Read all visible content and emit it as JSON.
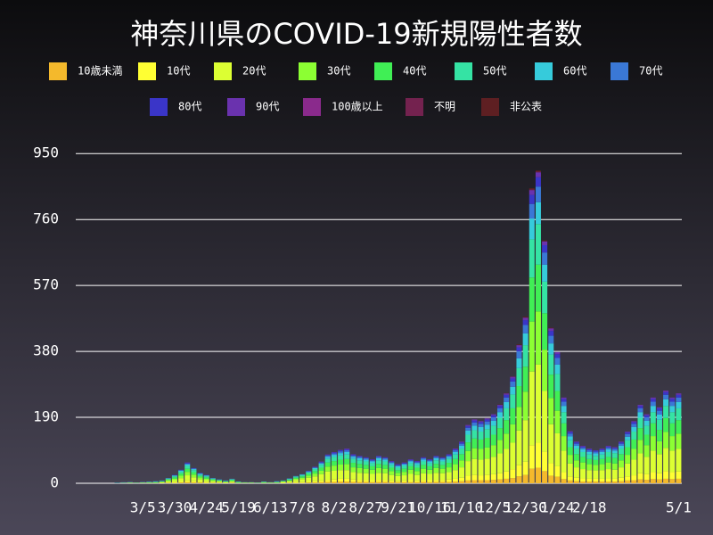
{
  "chart_data": {
    "type": "stacked_bar",
    "title": "神奈川県のCOVID-19新規陽性者数",
    "categories": [
      null,
      null,
      null,
      null,
      null,
      null,
      null,
      null,
      null,
      null,
      "3/5",
      null,
      null,
      null,
      null,
      "3/30",
      null,
      null,
      null,
      null,
      "4/24",
      null,
      null,
      null,
      null,
      "5/19",
      null,
      null,
      null,
      null,
      "6/13",
      null,
      null,
      null,
      null,
      "7/8",
      null,
      null,
      null,
      null,
      "8/2",
      null,
      null,
      null,
      null,
      "8/27",
      null,
      null,
      null,
      null,
      "9/21",
      null,
      null,
      null,
      null,
      "10/16",
      null,
      null,
      null,
      null,
      "11/10",
      null,
      null,
      null,
      null,
      "12/5",
      null,
      null,
      null,
      null,
      "12/30",
      null,
      null,
      null,
      null,
      "1/24",
      null,
      null,
      null,
      null,
      "2/18",
      null,
      null,
      null,
      null,
      null,
      null,
      null,
      null,
      null,
      null,
      null,
      null,
      null,
      "5/1"
    ],
    "ylim": [
      0,
      1020
    ],
    "yticks": [
      0,
      190,
      380,
      570,
      760,
      950
    ],
    "grid": true,
    "series": [
      {
        "name": "10歳未満",
        "color": "#f4b92c",
        "values": [
          0,
          0,
          0,
          0,
          0,
          0,
          0,
          0,
          0,
          0,
          0,
          0,
          0,
          0,
          1,
          1,
          2,
          3,
          2,
          2,
          1,
          1,
          1,
          0,
          1,
          0,
          0,
          0,
          0,
          0,
          0,
          0,
          0,
          1,
          1,
          1,
          2,
          2,
          3,
          4,
          4,
          5,
          5,
          4,
          4,
          4,
          3,
          4,
          4,
          3,
          3,
          3,
          3,
          3,
          4,
          3,
          4,
          4,
          4,
          5,
          6,
          8,
          9,
          9,
          9,
          10,
          11,
          13,
          15,
          20,
          24,
          42,
          45,
          35,
          22,
          19,
          12,
          8,
          6,
          5,
          5,
          5,
          5,
          5,
          5,
          6,
          8,
          9,
          11,
          10,
          12,
          11,
          13,
          12,
          13
        ]
      },
      {
        "name": "10代",
        "color": "#ffff33",
        "values": [
          0,
          0,
          0,
          0,
          0,
          0,
          0,
          0,
          0,
          0,
          0,
          0,
          0,
          1,
          1,
          2,
          3,
          5,
          4,
          2,
          2,
          1,
          1,
          1,
          1,
          0,
          0,
          0,
          0,
          0,
          0,
          0,
          1,
          1,
          2,
          2,
          3,
          4,
          5,
          6,
          7,
          8,
          8,
          7,
          6,
          6,
          6,
          6,
          6,
          5,
          4,
          5,
          6,
          5,
          6,
          6,
          6,
          6,
          7,
          8,
          10,
          14,
          15,
          14,
          15,
          16,
          18,
          21,
          25,
          32,
          38,
          68,
          72,
          56,
          36,
          30,
          20,
          12,
          10,
          9,
          8,
          8,
          8,
          9,
          8,
          10,
          12,
          14,
          18,
          16,
          20,
          18,
          22,
          20,
          21
        ]
      },
      {
        "name": "20代",
        "color": "#dcff33",
        "values": [
          0,
          0,
          0,
          0,
          0,
          0,
          0,
          1,
          1,
          1,
          1,
          1,
          1,
          2,
          4,
          6,
          10,
          15,
          11,
          8,
          6,
          4,
          3,
          2,
          3,
          1,
          1,
          1,
          1,
          1,
          1,
          1,
          3,
          4,
          7,
          9,
          11,
          14,
          18,
          24,
          25,
          25,
          25,
          21,
          20,
          19,
          18,
          20,
          19,
          16,
          14,
          15,
          18,
          16,
          19,
          18,
          20,
          19,
          21,
          25,
          30,
          42,
          46,
          45,
          47,
          50,
          57,
          65,
          77,
          100,
          120,
          212,
          225,
          175,
          112,
          95,
          62,
          37,
          30,
          27,
          25,
          24,
          25,
          27,
          26,
          30,
          37,
          45,
          57,
          50,
          62,
          55,
          67,
          62,
          65
        ]
      },
      {
        "name": "30代",
        "color": "#8cff33",
        "values": [
          0,
          0,
          0,
          0,
          0,
          0,
          0,
          0,
          1,
          0,
          1,
          1,
          1,
          1,
          3,
          4,
          7,
          10,
          8,
          5,
          4,
          3,
          2,
          1,
          2,
          1,
          1,
          1,
          0,
          1,
          1,
          1,
          1,
          2,
          3,
          4,
          6,
          8,
          10,
          14,
          15,
          16,
          17,
          14,
          14,
          13,
          12,
          14,
          13,
          11,
          9,
          10,
          12,
          11,
          13,
          12,
          14,
          13,
          14,
          17,
          20,
          29,
          31,
          31,
          32,
          34,
          39,
          44,
          53,
          68,
          82,
          144,
          153,
          119,
          76,
          65,
          42,
          25,
          20,
          19,
          17,
          16,
          17,
          19,
          18,
          20,
          25,
          31,
          39,
          34,
          42,
          37,
          46,
          42,
          44
        ]
      },
      {
        "name": "40代",
        "color": "#40ef55",
        "values": [
          0,
          0,
          0,
          0,
          0,
          0,
          0,
          0,
          0,
          0,
          0,
          1,
          1,
          1,
          2,
          4,
          6,
          9,
          7,
          4,
          4,
          2,
          1,
          1,
          2,
          1,
          0,
          0,
          0,
          1,
          0,
          1,
          1,
          2,
          3,
          4,
          5,
          7,
          9,
          12,
          13,
          14,
          15,
          13,
          12,
          11,
          10,
          12,
          11,
          10,
          8,
          9,
          10,
          10,
          11,
          10,
          12,
          11,
          13,
          15,
          18,
          25,
          28,
          27,
          28,
          30,
          34,
          39,
          46,
          60,
          72,
          127,
          135,
          105,
          67,
          57,
          37,
          22,
          18,
          16,
          15,
          14,
          15,
          16,
          16,
          18,
          22,
          27,
          34,
          30,
          37,
          33,
          40,
          37,
          39
        ]
      },
      {
        "name": "50代",
        "color": "#35e3a4",
        "values": [
          0,
          0,
          0,
          0,
          0,
          0,
          0,
          0,
          0,
          0,
          0,
          0,
          1,
          1,
          2,
          3,
          5,
          8,
          6,
          4,
          3,
          2,
          1,
          1,
          2,
          1,
          0,
          0,
          0,
          1,
          0,
          1,
          1,
          2,
          3,
          3,
          4,
          6,
          8,
          10,
          12,
          12,
          13,
          11,
          10,
          10,
          9,
          10,
          10,
          8,
          7,
          8,
          9,
          8,
          10,
          9,
          10,
          10,
          11,
          13,
          16,
          22,
          24,
          23,
          25,
          26,
          30,
          34,
          40,
          52,
          62,
          110,
          117,
          91,
          58,
          49,
          32,
          20,
          16,
          14,
          13,
          12,
          13,
          14,
          14,
          16,
          20,
          23,
          30,
          26,
          32,
          29,
          35,
          32,
          34
        ]
      },
      {
        "name": "60代",
        "color": "#36cbdb",
        "values": [
          0,
          0,
          0,
          0,
          0,
          0,
          1,
          1,
          1,
          1,
          1,
          1,
          1,
          1,
          1,
          2,
          3,
          4,
          3,
          2,
          2,
          1,
          1,
          1,
          1,
          1,
          1,
          1,
          1,
          1,
          1,
          1,
          1,
          1,
          1,
          2,
          2,
          3,
          4,
          6,
          6,
          7,
          7,
          6,
          6,
          5,
          5,
          6,
          5,
          5,
          4,
          4,
          5,
          5,
          5,
          5,
          6,
          5,
          6,
          7,
          8,
          12,
          13,
          13,
          13,
          14,
          16,
          18,
          22,
          28,
          34,
          60,
          63,
          49,
          32,
          27,
          18,
          11,
          8,
          8,
          7,
          7,
          7,
          8,
          7,
          8,
          10,
          13,
          16,
          14,
          18,
          15,
          19,
          18,
          18
        ]
      },
      {
        "name": "70代",
        "color": "#3a78d6",
        "values": [
          0,
          0,
          0,
          0,
          0,
          0,
          0,
          1,
          1,
          0,
          1,
          1,
          1,
          1,
          1,
          1,
          2,
          3,
          2,
          2,
          1,
          1,
          1,
          1,
          1,
          0,
          0,
          0,
          0,
          0,
          0,
          1,
          0,
          1,
          1,
          1,
          2,
          2,
          3,
          4,
          4,
          5,
          5,
          4,
          4,
          4,
          3,
          4,
          4,
          3,
          3,
          3,
          3,
          3,
          4,
          3,
          4,
          4,
          4,
          5,
          6,
          8,
          9,
          9,
          9,
          10,
          11,
          13,
          15,
          20,
          24,
          42,
          45,
          35,
          22,
          19,
          12,
          8,
          6,
          5,
          5,
          5,
          5,
          5,
          5,
          6,
          8,
          9,
          11,
          10,
          12,
          11,
          13,
          12,
          13
        ]
      },
      {
        "name": "80代",
        "color": "#3a35c8",
        "values": [
          0,
          0,
          0,
          0,
          0,
          0,
          0,
          0,
          0,
          0,
          0,
          0,
          0,
          0,
          0,
          1,
          1,
          2,
          1,
          1,
          1,
          0,
          0,
          0,
          0,
          0,
          0,
          0,
          0,
          0,
          0,
          0,
          0,
          0,
          0,
          0,
          1,
          1,
          2,
          2,
          3,
          3,
          3,
          3,
          2,
          2,
          2,
          2,
          2,
          2,
          2,
          2,
          2,
          2,
          2,
          2,
          2,
          2,
          3,
          3,
          4,
          5,
          6,
          5,
          6,
          6,
          7,
          8,
          9,
          12,
          14,
          26,
          27,
          21,
          14,
          11,
          8,
          5,
          4,
          3,
          3,
          3,
          3,
          3,
          3,
          4,
          5,
          5,
          7,
          6,
          8,
          7,
          8,
          8,
          8
        ]
      },
      {
        "name": "90代",
        "color": "#6a32ae",
        "values": [
          0,
          0,
          0,
          0,
          0,
          0,
          0,
          0,
          0,
          0,
          0,
          0,
          0,
          0,
          0,
          0,
          0,
          1,
          0,
          0,
          0,
          0,
          0,
          0,
          0,
          0,
          0,
          0,
          0,
          0,
          0,
          0,
          0,
          0,
          0,
          0,
          0,
          1,
          1,
          1,
          1,
          1,
          2,
          1,
          1,
          1,
          1,
          1,
          1,
          1,
          1,
          1,
          1,
          1,
          1,
          1,
          1,
          1,
          1,
          2,
          2,
          3,
          3,
          3,
          3,
          3,
          3,
          4,
          5,
          6,
          7,
          13,
          14,
          11,
          7,
          6,
          4,
          2,
          2,
          2,
          2,
          1,
          2,
          2,
          2,
          2,
          2,
          3,
          3,
          3,
          4,
          3,
          4,
          4,
          4
        ]
      },
      {
        "name": "100歳以上",
        "color": "#8a2a8c",
        "values": [
          0,
          0,
          0,
          0,
          0,
          0,
          0,
          0,
          0,
          0,
          0,
          0,
          0,
          0,
          0,
          0,
          0,
          0,
          0,
          0,
          0,
          0,
          0,
          0,
          0,
          0,
          0,
          0,
          0,
          0,
          0,
          0,
          0,
          0,
          0,
          0,
          0,
          0,
          0,
          0,
          0,
          0,
          0,
          0,
          0,
          0,
          0,
          0,
          0,
          0,
          0,
          0,
          0,
          0,
          0,
          0,
          0,
          0,
          0,
          0,
          0,
          0,
          0,
          0,
          0,
          0,
          0,
          0,
          0,
          0,
          0,
          1,
          0,
          0,
          0,
          0,
          0,
          0,
          0,
          0,
          0,
          0,
          0,
          0,
          0,
          0,
          0,
          0,
          0,
          0,
          0,
          0,
          0,
          0,
          0
        ]
      },
      {
        "name": "不明",
        "color": "#74224f",
        "values": [
          0,
          0,
          0,
          0,
          0,
          0,
          0,
          0,
          0,
          0,
          0,
          0,
          0,
          0,
          0,
          0,
          0,
          0,
          0,
          0,
          0,
          0,
          0,
          0,
          0,
          0,
          0,
          0,
          0,
          0,
          0,
          0,
          0,
          0,
          0,
          0,
          0,
          0,
          0,
          0,
          0,
          0,
          0,
          0,
          0,
          0,
          0,
          0,
          0,
          0,
          0,
          0,
          0,
          0,
          0,
          0,
          0,
          0,
          0,
          0,
          0,
          0,
          0,
          0,
          0,
          0,
          0,
          0,
          0,
          0,
          1,
          2,
          2,
          1,
          1,
          0,
          0,
          0,
          0,
          0,
          0,
          0,
          0,
          0,
          0,
          0,
          0,
          0,
          0,
          0,
          0,
          0,
          0,
          0,
          0
        ]
      },
      {
        "name": "非公表",
        "color": "#5e1f22",
        "values": [
          0,
          0,
          0,
          0,
          0,
          0,
          0,
          0,
          0,
          0,
          0,
          0,
          0,
          0,
          0,
          0,
          0,
          0,
          0,
          0,
          0,
          0,
          0,
          0,
          0,
          0,
          0,
          0,
          0,
          0,
          0,
          0,
          0,
          0,
          0,
          0,
          0,
          0,
          0,
          0,
          0,
          0,
          0,
          0,
          0,
          0,
          0,
          0,
          0,
          0,
          0,
          0,
          0,
          0,
          0,
          0,
          0,
          0,
          0,
          0,
          0,
          0,
          0,
          0,
          0,
          0,
          1,
          1,
          1,
          2,
          2,
          3,
          3,
          2,
          1,
          0,
          0,
          0,
          0,
          0,
          0,
          0,
          0,
          0,
          0,
          0,
          0,
          0,
          0,
          0,
          0,
          0,
          0,
          0,
          0
        ]
      }
    ]
  }
}
